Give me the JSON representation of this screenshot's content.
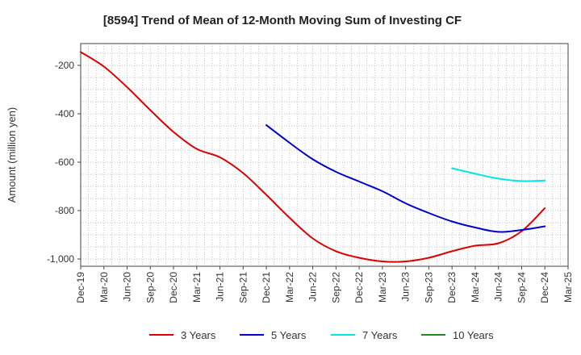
{
  "chart_data": {
    "type": "line",
    "title": "[8594]  Trend of Mean of 12-Month Moving Sum of Investing CF",
    "xlabel": "",
    "ylabel": "Amount (million yen)",
    "ylim": [
      -1030,
      -110
    ],
    "yticks": [
      -200,
      -400,
      -600,
      -800,
      -1000
    ],
    "ytick_labels": [
      "-200",
      "-400",
      "-600",
      "-800",
      "-1,000"
    ],
    "x_tick_labels": [
      "Dec-19",
      "Mar-20",
      "Jun-20",
      "Sep-20",
      "Dec-20",
      "Mar-21",
      "Jun-21",
      "Sep-21",
      "Dec-21",
      "Mar-22",
      "Jun-22",
      "Sep-22",
      "Dec-22",
      "Mar-23",
      "Jun-23",
      "Sep-23",
      "Dec-23",
      "Mar-24",
      "Jun-24",
      "Sep-24",
      "Dec-24",
      "Mar-25"
    ],
    "x_tick_months": [
      0,
      3,
      6,
      9,
      12,
      15,
      18,
      21,
      24,
      27,
      30,
      33,
      36,
      39,
      42,
      45,
      48,
      51,
      54,
      57,
      60,
      63
    ],
    "x_range_months": [
      0,
      63
    ],
    "grid": true,
    "legend_position": "bottom",
    "series": [
      {
        "name": "3 Years",
        "color": "#dd0000",
        "x_months": [
          0,
          3,
          6,
          9,
          12,
          15,
          18,
          21,
          24,
          27,
          30,
          33,
          36,
          39,
          42,
          45,
          48,
          51,
          54,
          57,
          60
        ],
        "values": [
          -145,
          -205,
          -290,
          -385,
          -475,
          -545,
          -580,
          -645,
          -735,
          -830,
          -915,
          -968,
          -995,
          -1010,
          -1010,
          -995,
          -968,
          -945,
          -935,
          -885,
          -790
        ]
      },
      {
        "name": "5 Years",
        "color": "#0000cc",
        "x_months": [
          24,
          27,
          30,
          33,
          36,
          39,
          42,
          45,
          48,
          51,
          54,
          57,
          60
        ],
        "values": [
          -447,
          -520,
          -588,
          -640,
          -680,
          -720,
          -770,
          -810,
          -845,
          -870,
          -888,
          -880,
          -865
        ]
      },
      {
        "name": "7 Years",
        "color": "#00e5e5",
        "x_months": [
          48,
          51,
          54,
          57,
          60
        ],
        "values": [
          -625,
          -648,
          -668,
          -678,
          -676
        ]
      },
      {
        "name": "10 Years",
        "color": "#228b22",
        "x_months": [],
        "values": []
      }
    ]
  }
}
